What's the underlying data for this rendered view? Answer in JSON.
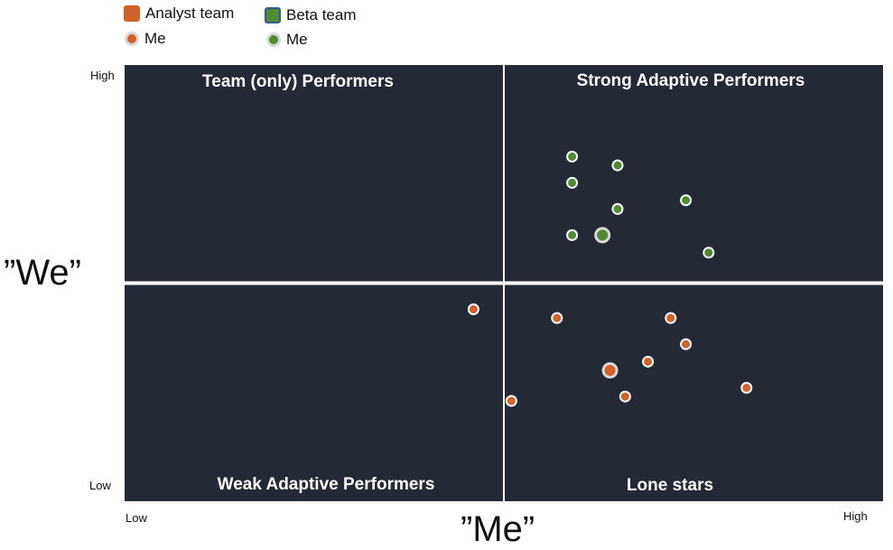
{
  "legend": [
    {
      "label": "Analyst team",
      "color": "#D2622A",
      "kind": "team-swatch"
    },
    {
      "label": "Beta team",
      "color": "#4E8B32",
      "border": "#2E5F93",
      "kind": "team-swatch"
    },
    {
      "label": "Me",
      "color": "#D2622A",
      "kind": "me-marker"
    },
    {
      "label": "Me",
      "color": "#4E8B32",
      "kind": "me-marker"
    }
  ],
  "axes": {
    "x_title": "”Me”",
    "y_title": "”We”",
    "x_low": "Low",
    "x_high": "High",
    "y_low": "Low",
    "y_high": "High"
  },
  "quadrants": {
    "top_left": "Team (only) Performers",
    "top_right": "Strong Adaptive Performers",
    "bottom_left": "Weak Adaptive Performers",
    "bottom_right": "Lone stars"
  },
  "colors": {
    "plot_background": "#232A35",
    "divider": "#ffffff",
    "analyst": "#D2622A",
    "beta": "#4E8B32",
    "me_outline": "#D9D9D9"
  },
  "chart_data": {
    "type": "scatter",
    "xlim": [
      0,
      100
    ],
    "ylim": [
      0,
      100
    ],
    "x_label": "”Me”",
    "y_label": "”We”",
    "grid": false,
    "quadrant_split": {
      "x": 50,
      "y": 50
    },
    "series": [
      {
        "name": "Analyst team",
        "color": "#D2622A",
        "points": [
          {
            "x": 46,
            "y": 44
          },
          {
            "x": 57,
            "y": 42
          },
          {
            "x": 72,
            "y": 42
          },
          {
            "x": 74,
            "y": 36
          },
          {
            "x": 69,
            "y": 32
          },
          {
            "x": 66,
            "y": 24
          },
          {
            "x": 82,
            "y": 26
          },
          {
            "x": 51,
            "y": 23
          }
        ],
        "me": {
          "x": 64,
          "y": 30
        }
      },
      {
        "name": "Beta team",
        "color": "#4E8B32",
        "points": [
          {
            "x": 59,
            "y": 79
          },
          {
            "x": 65,
            "y": 77
          },
          {
            "x": 59,
            "y": 73
          },
          {
            "x": 74,
            "y": 69
          },
          {
            "x": 65,
            "y": 67
          },
          {
            "x": 59,
            "y": 61
          },
          {
            "x": 77,
            "y": 57
          }
        ],
        "me": {
          "x": 63,
          "y": 61
        }
      }
    ]
  }
}
